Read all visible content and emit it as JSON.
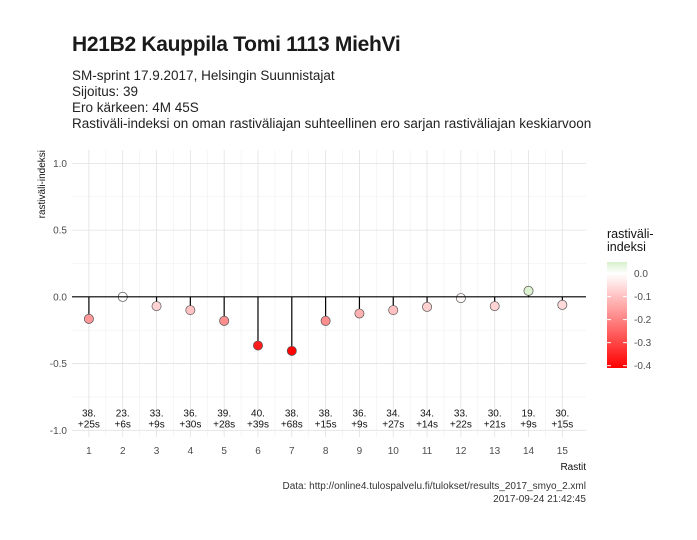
{
  "header": {
    "title": "H21B2 Kauppila Tomi 1113 MiehVi",
    "subtitle_lines": [
      "SM-sprint 17.9.2017, Helsingin Suunnistajat",
      "Sijoitus: 39",
      "Ero kärkeen: 4M 45S",
      "Rastiväli-indeksi on oman rastiväliajan suhteellinen ero sarjan rastiväliajan keskiarvoon"
    ]
  },
  "caption": {
    "source": "Data: http://online4.tulospalvelu.fi/tulokset/results_2017_smyo_2.xml",
    "timestamp": "2017-09-24 21:42:45"
  },
  "chart_data": {
    "type": "scatter",
    "style": "lollipop",
    "xlabel": "Rastit",
    "ylabel": "rastiväli-indeksi",
    "xlim": [
      0.5,
      15.7
    ],
    "ylim": [
      -1.05,
      1.1
    ],
    "yticks": [
      -1.0,
      -0.5,
      0.0,
      0.5,
      1.0
    ],
    "ytick_labels": [
      "-1.0",
      "-0.5",
      "0.0",
      "0.5",
      "1.0"
    ],
    "x": [
      1,
      2,
      3,
      4,
      5,
      6,
      7,
      8,
      9,
      10,
      11,
      12,
      13,
      14,
      15
    ],
    "values": [
      -0.165,
      0.0,
      -0.07,
      -0.1,
      -0.18,
      -0.365,
      -0.405,
      -0.18,
      -0.125,
      -0.1,
      -0.075,
      -0.01,
      -0.07,
      0.045,
      -0.06
    ],
    "point_labels": [
      [
        "38.",
        "+25s"
      ],
      [
        "23.",
        "+6s"
      ],
      [
        "33.",
        "+9s"
      ],
      [
        "36.",
        "+30s"
      ],
      [
        "39.",
        "+28s"
      ],
      [
        "40.",
        "+39s"
      ],
      [
        "38.",
        "+68s"
      ],
      [
        "38.",
        "+15s"
      ],
      [
        "36.",
        "+9s"
      ],
      [
        "34.",
        "+27s"
      ],
      [
        "34.",
        "+14s"
      ],
      [
        "33.",
        "+22s"
      ],
      [
        "30.",
        "+21s"
      ],
      [
        "19.",
        "+9s"
      ],
      [
        "30.",
        "+15s"
      ]
    ],
    "label_y": -0.92,
    "grid": true,
    "legend": {
      "title_lines": [
        "rastiväli-",
        "indeksi"
      ],
      "placement": "right",
      "range": [
        -0.41,
        0.05
      ],
      "ticks": [
        0.0,
        -0.1,
        -0.2,
        -0.3,
        -0.4
      ],
      "tick_labels": [
        "0.0",
        "-0.1",
        "-0.2",
        "-0.3",
        "-0.4"
      ],
      "colors": {
        "high": "#d8f0cc",
        "zero": "#ffffff",
        "low": "#ff0000"
      }
    }
  }
}
